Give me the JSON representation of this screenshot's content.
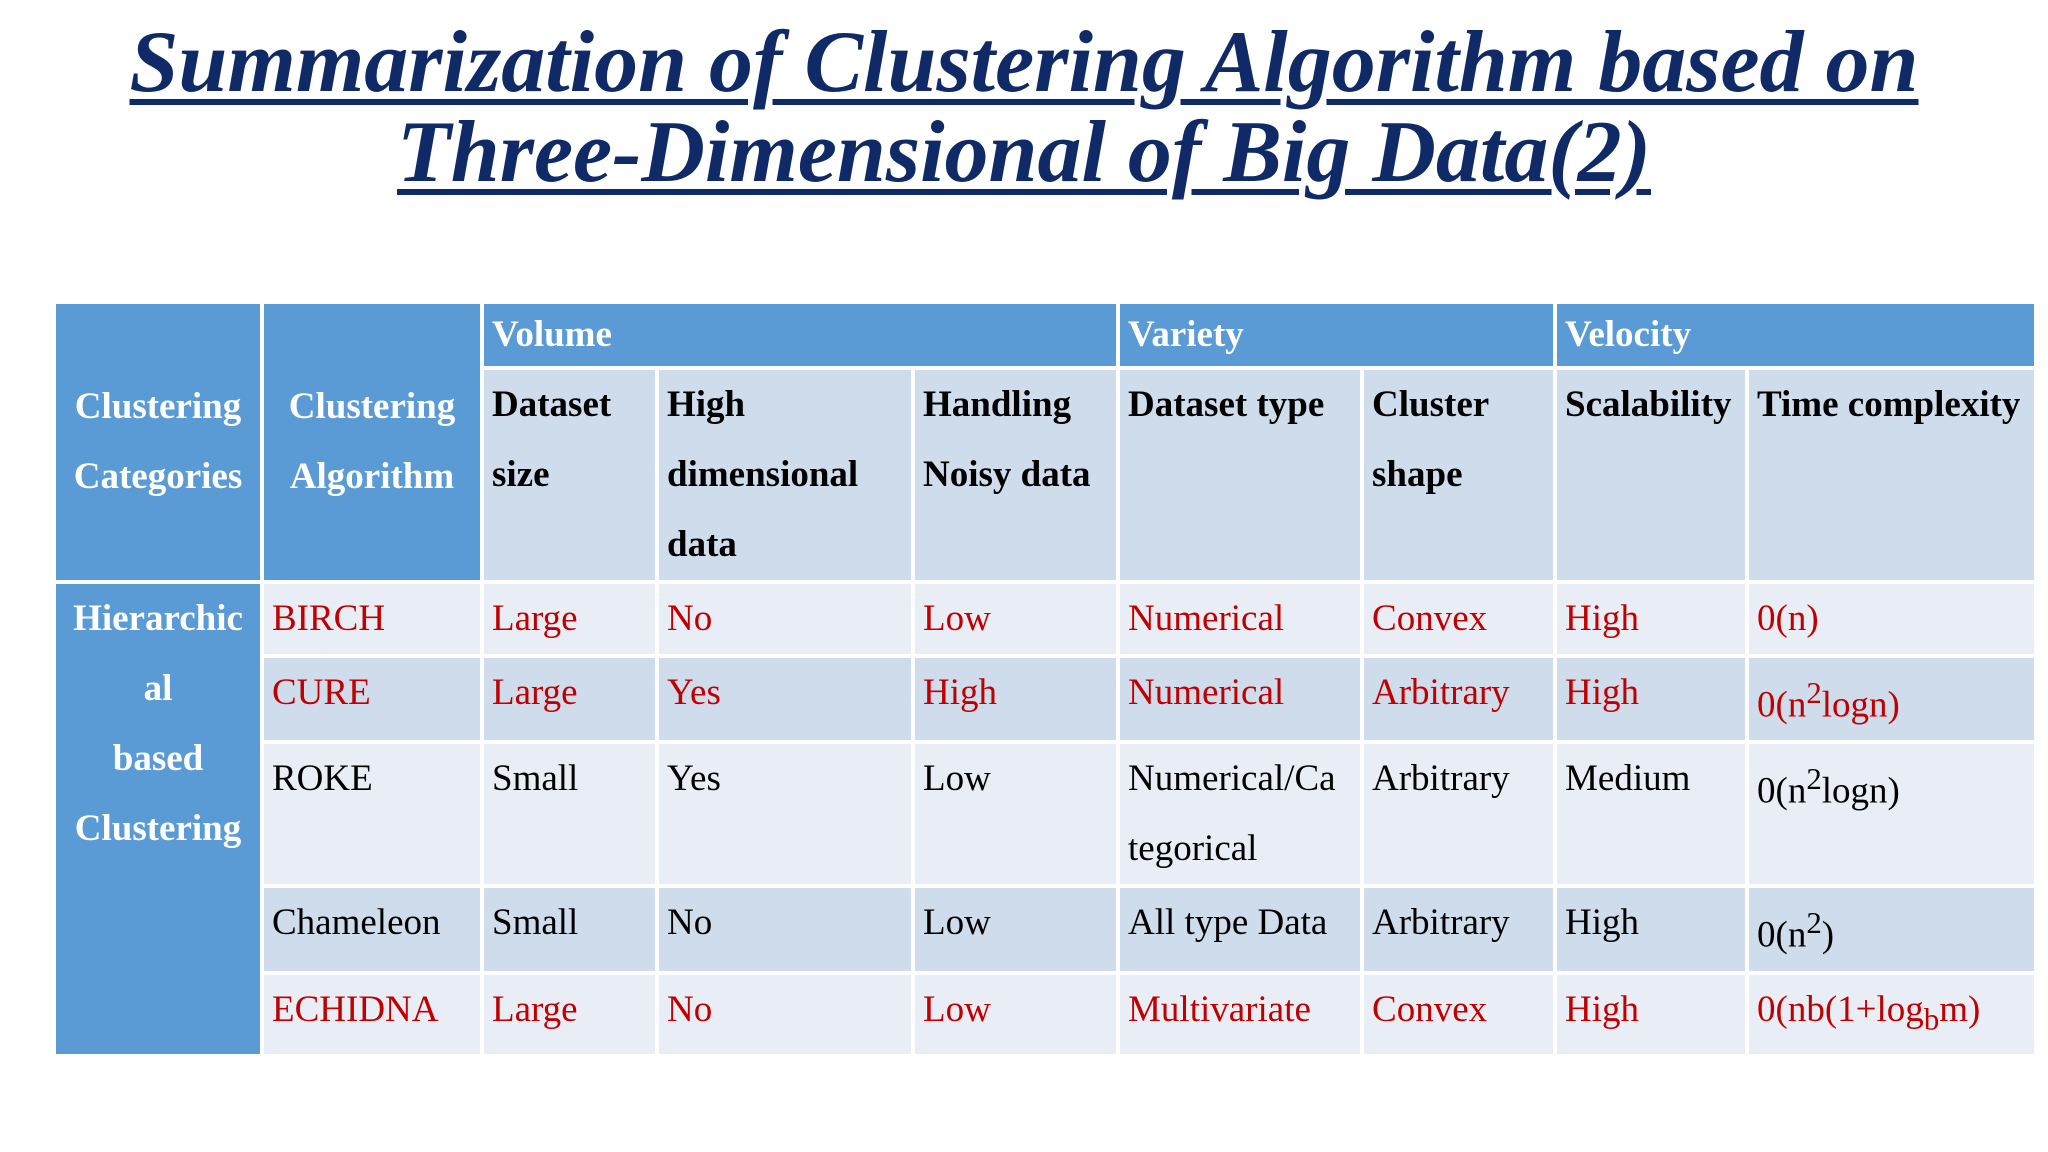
{
  "title": {
    "line1": "Summarization of Clustering Algorithm based on",
    "line2": "Three-Dimensional of Big Data(2)"
  },
  "table": {
    "header": {
      "clustering_categories": [
        "Clustering",
        "Categories"
      ],
      "clustering_algorithm": [
        "Clustering",
        "Algorithm"
      ],
      "groups": [
        "Volume",
        "Variety",
        "Velocity"
      ],
      "columns": [
        [
          "Dataset",
          "size"
        ],
        [
          "High",
          "dimensional",
          "data"
        ],
        [
          "Handling",
          "Noisy data"
        ],
        [
          "Dataset type"
        ],
        [
          "Cluster",
          "shape"
        ],
        [
          "Scalability"
        ],
        [
          "Time complexity"
        ]
      ]
    },
    "category": [
      "Hierarchic",
      "al",
      "based",
      "Clustering"
    ],
    "rows": [
      {
        "algorithm": "BIRCH",
        "highlight": true,
        "dataset_size": "Large",
        "high_dimensional": "No",
        "noisy": "Low",
        "dataset_type": "Numerical",
        "dataset_type_2": "",
        "cluster_shape": "Convex",
        "scalability": "High",
        "time_complexity": {
          "base": "0(n)",
          "sup": "",
          "sub": "",
          "tail": ""
        }
      },
      {
        "algorithm": "CURE",
        "highlight": true,
        "dataset_size": "Large",
        "high_dimensional": "Yes",
        "noisy": "High",
        "dataset_type": "Numerical",
        "dataset_type_2": "",
        "cluster_shape": "Arbitrary",
        "scalability": "High",
        "time_complexity": {
          "base": "0(n",
          "sup": "2",
          "sub": "",
          "tail": "logn)"
        }
      },
      {
        "algorithm": "ROKE",
        "highlight": false,
        "dataset_size": "Small",
        "high_dimensional": "Yes",
        "noisy": "Low",
        "dataset_type": "Numerical/Ca",
        "dataset_type_2": "tegorical",
        "cluster_shape": "Arbitrary",
        "scalability": "Medium",
        "time_complexity": {
          "base": "0(n",
          "sup": "2",
          "sub": "",
          "tail": "logn)"
        }
      },
      {
        "algorithm": "Chameleon",
        "highlight": false,
        "dataset_size": "Small",
        "high_dimensional": "No",
        "noisy": "Low",
        "dataset_type": "All type Data",
        "dataset_type_2": "",
        "cluster_shape": "Arbitrary",
        "scalability": "High",
        "time_complexity": {
          "base": "0(n",
          "sup": "2",
          "sub": "",
          "tail": ")"
        }
      },
      {
        "algorithm": "ECHIDNA",
        "highlight": true,
        "dataset_size": "Large",
        "high_dimensional": "No",
        "noisy": "Low",
        "dataset_type": "Multivariate",
        "dataset_type_2": "",
        "cluster_shape": "Convex",
        "scalability": "High",
        "time_complexity": {
          "base": "0(nb(1+log",
          "sup": "",
          "sub": "b",
          "tail": "m)"
        }
      }
    ]
  },
  "colors": {
    "title": "#0f2a66",
    "header_dark": "#5b9bd5",
    "header_light": "#cfdcec",
    "row_light": "#e9eef6",
    "highlight_text": "#c00000"
  }
}
